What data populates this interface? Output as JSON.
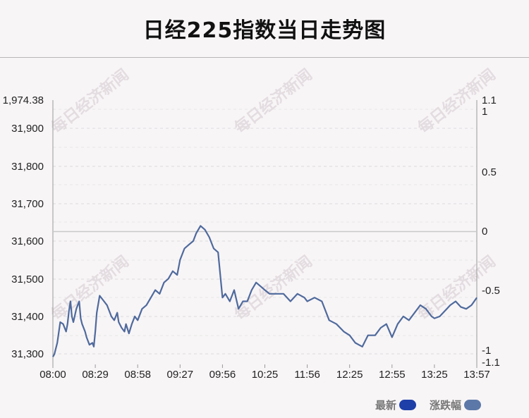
{
  "chart_data": {
    "type": "line",
    "title": "日经225指数当日走势图",
    "x_ticks": [
      "08:00",
      "08:29",
      "08:58",
      "09:27",
      "09:56",
      "10:25",
      "11:56",
      "12:25",
      "12:55",
      "13:25",
      "13:57"
    ],
    "y_ticks": [
      "1,974.38",
      "31,900",
      "31,800",
      "31,700",
      "31,600",
      "31,500",
      "31,400",
      "31,300"
    ],
    "y2_ticks": [
      "1.1",
      "1",
      "0.5",
      "0",
      "-0.5",
      "-1",
      "-1.1"
    ],
    "ylim": [
      31276,
      31976
    ],
    "series": [
      {
        "name": "最新",
        "color": "#1e3fa8",
        "x": [
          "08:00",
          "08:01",
          "08:03",
          "08:05",
          "08:07",
          "08:09",
          "08:10",
          "08:11",
          "08:12",
          "08:13",
          "08:14",
          "08:16",
          "08:18",
          "08:19",
          "08:20",
          "08:22",
          "08:23",
          "08:25",
          "08:27",
          "08:28",
          "08:29",
          "08:30",
          "08:32",
          "08:35",
          "08:37",
          "08:40",
          "08:42",
          "08:44",
          "08:45",
          "08:47",
          "08:49",
          "08:50",
          "08:52",
          "08:54",
          "08:56",
          "08:58",
          "09:01",
          "09:04",
          "09:07",
          "09:10",
          "09:13",
          "09:16",
          "09:19",
          "09:22",
          "09:25",
          "09:27",
          "09:30",
          "09:33",
          "09:36",
          "09:38",
          "09:41",
          "09:44",
          "09:47",
          "09:50",
          "09:53",
          "09:56",
          "09:58",
          "10:01",
          "10:04",
          "10:07",
          "10:10",
          "10:13",
          "10:16",
          "10:19",
          "10:22",
          "10:25",
          "10:35",
          "10:50",
          "11:05",
          "11:20",
          "11:35",
          "11:50",
          "11:56",
          "12:01",
          "12:06",
          "12:11",
          "12:16",
          "12:21",
          "12:25",
          "12:29",
          "12:34",
          "12:38",
          "12:43",
          "12:47",
          "12:51",
          "12:55",
          "12:59",
          "13:03",
          "13:07",
          "13:11",
          "13:15",
          "13:19",
          "13:23",
          "13:25",
          "13:29",
          "13:33",
          "13:37",
          "13:41",
          "13:45",
          "13:49",
          "13:53",
          "13:57"
        ],
        "values": [
          31293,
          31300,
          31330,
          31385,
          31380,
          31360,
          31380,
          31415,
          31440,
          31400,
          31385,
          31420,
          31440,
          31395,
          31380,
          31360,
          31345,
          31325,
          31330,
          31320,
          31360,
          31410,
          31455,
          31440,
          31430,
          31400,
          31390,
          31410,
          31385,
          31370,
          31360,
          31380,
          31355,
          31380,
          31400,
          31390,
          31420,
          31430,
          31450,
          31470,
          31460,
          31490,
          31500,
          31520,
          31510,
          31550,
          31580,
          31590,
          31600,
          31620,
          31640,
          31630,
          31610,
          31580,
          31570,
          31450,
          31460,
          31440,
          31470,
          31420,
          31440,
          31440,
          31470,
          31490,
          31480,
          31470,
          31460,
          31460,
          31460,
          31440,
          31460,
          31450,
          31440,
          31450,
          31440,
          31390,
          31380,
          31360,
          31350,
          31330,
          31320,
          31350,
          31350,
          31370,
          31380,
          31345,
          31380,
          31400,
          31390,
          31410,
          31430,
          31420,
          31400,
          31395,
          31400,
          31415,
          31430,
          31440,
          31425,
          31420,
          31430,
          31450
        ]
      }
    ],
    "reference_line": 31625,
    "legend": [
      {
        "label": "最新",
        "color": "#1e3fa8"
      },
      {
        "label": "涨跌幅",
        "color": "#5c78a8"
      }
    ]
  },
  "watermark": "每日经济新闻"
}
